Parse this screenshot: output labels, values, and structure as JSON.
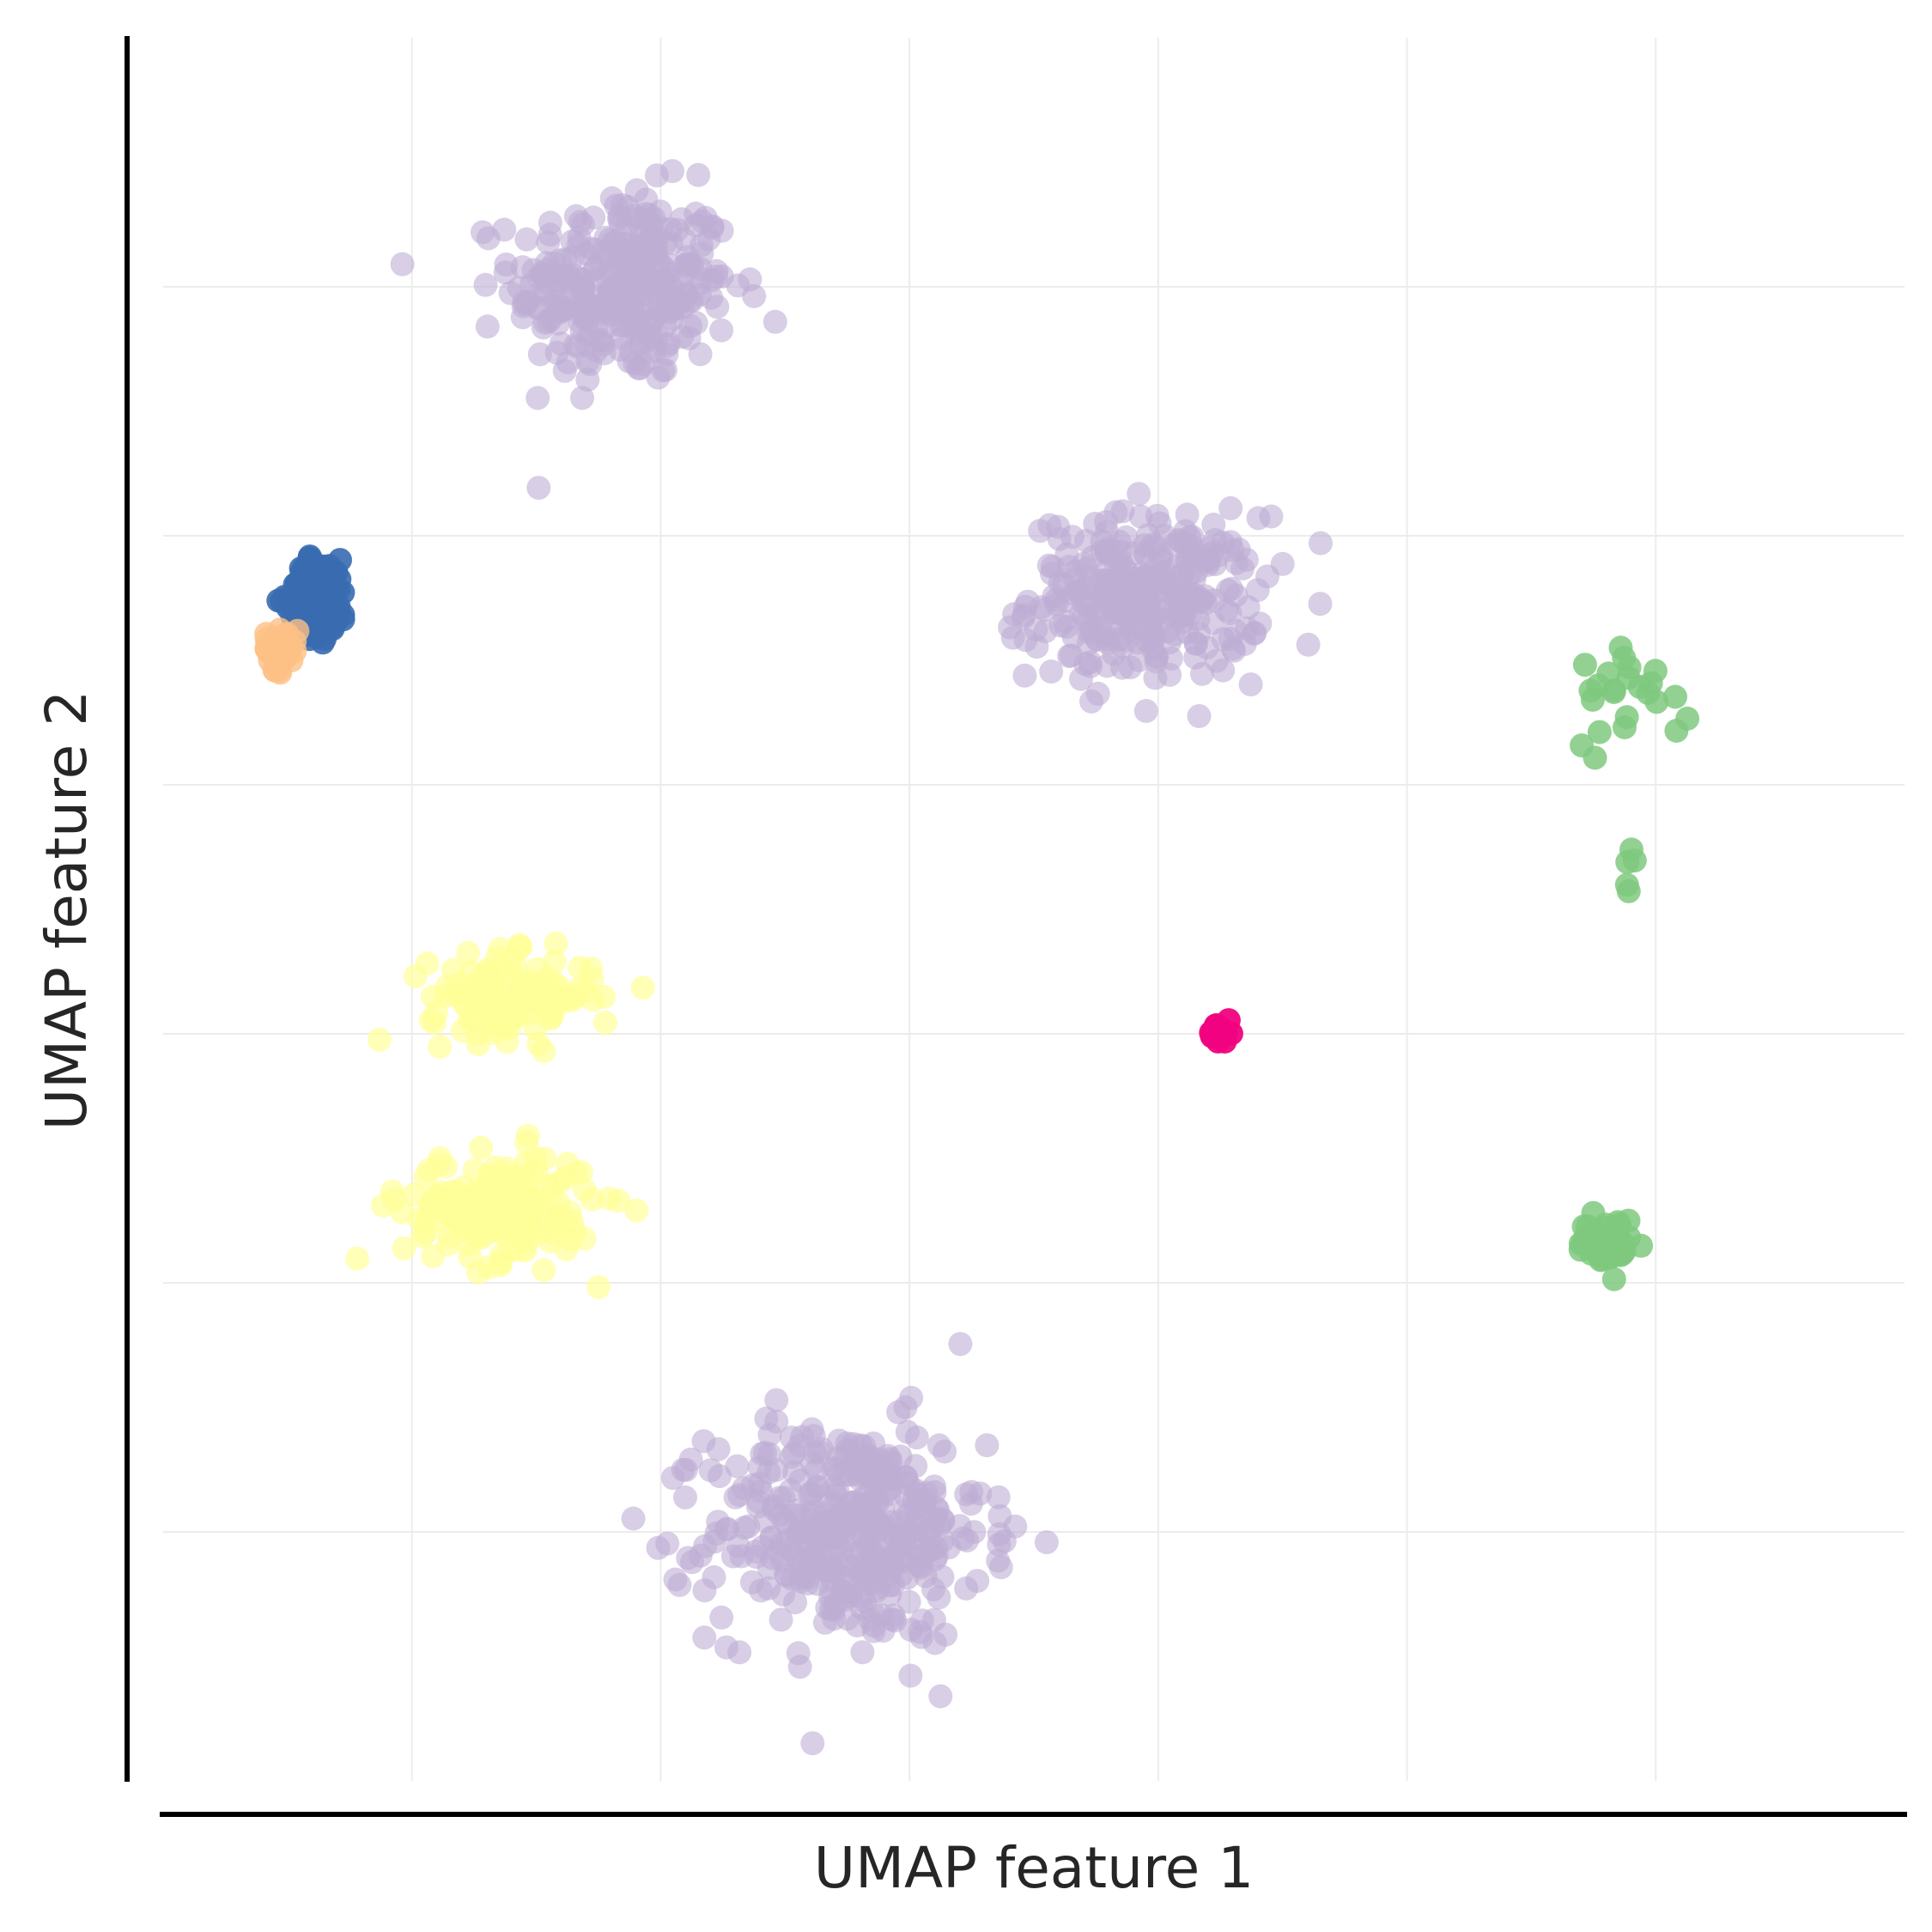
{
  "chart_data": {
    "type": "scatter",
    "title": "",
    "xlabel": "UMAP feature 1",
    "ylabel": "UMAP feature 2",
    "xlim": [
      0,
      14
    ],
    "ylim": [
      0,
      14
    ],
    "x_grid_positions": [
      2,
      4,
      6,
      8,
      10,
      12
    ],
    "y_grid_positions": [
      2,
      4,
      6,
      8,
      10,
      12
    ],
    "grid": true,
    "tick_labels_shown": false,
    "legend": "none",
    "series": [
      {
        "color": "#beaed4",
        "alpha": 0.6,
        "clusters": [
          {
            "center": [
              3.7,
              12.0
            ],
            "spread": [
              0.8,
              0.7
            ],
            "n": 320
          },
          {
            "center": [
              7.9,
              9.5
            ],
            "spread": [
              0.85,
              0.6
            ],
            "n": 300
          },
          {
            "center": [
              5.5,
              2.0
            ],
            "spread": [
              1.0,
              0.8
            ],
            "n": 420
          }
        ]
      },
      {
        "color": "#386cb0",
        "alpha": 0.9,
        "clusters": [
          {
            "center": [
              1.25,
              9.5
            ],
            "spread": [
              0.22,
              0.28
            ],
            "n": 160
          }
        ]
      },
      {
        "color": "#fdc086",
        "alpha": 0.8,
        "clusters": [
          {
            "center": [
              0.95,
              9.1
            ],
            "spread": [
              0.12,
              0.16
            ],
            "n": 40
          }
        ]
      },
      {
        "color": "#ffff99",
        "alpha": 0.7,
        "clusters": [
          {
            "center": [
              2.8,
              6.3
            ],
            "spread": [
              0.6,
              0.3
            ],
            "n": 140
          },
          {
            "center": [
              2.7,
              4.6
            ],
            "spread": [
              0.7,
              0.4
            ],
            "n": 180
          }
        ]
      },
      {
        "color": "#f0027f",
        "alpha": 0.95,
        "clusters": [
          {
            "center": [
              8.5,
              6.0
            ],
            "spread": [
              0.08,
              0.08
            ],
            "n": 25
          }
        ]
      },
      {
        "color": "#7fc97f",
        "alpha": 0.85,
        "clusters": [
          {
            "center": [
              11.8,
              8.8
            ],
            "spread": [
              0.45,
              0.4
            ],
            "n": 24
          },
          {
            "center": [
              11.8,
              7.3
            ],
            "spread": [
              0.05,
              0.25
            ],
            "n": 5
          },
          {
            "center": [
              11.6,
              4.3
            ],
            "spread": [
              0.2,
              0.2
            ],
            "n": 40
          }
        ]
      }
    ]
  }
}
